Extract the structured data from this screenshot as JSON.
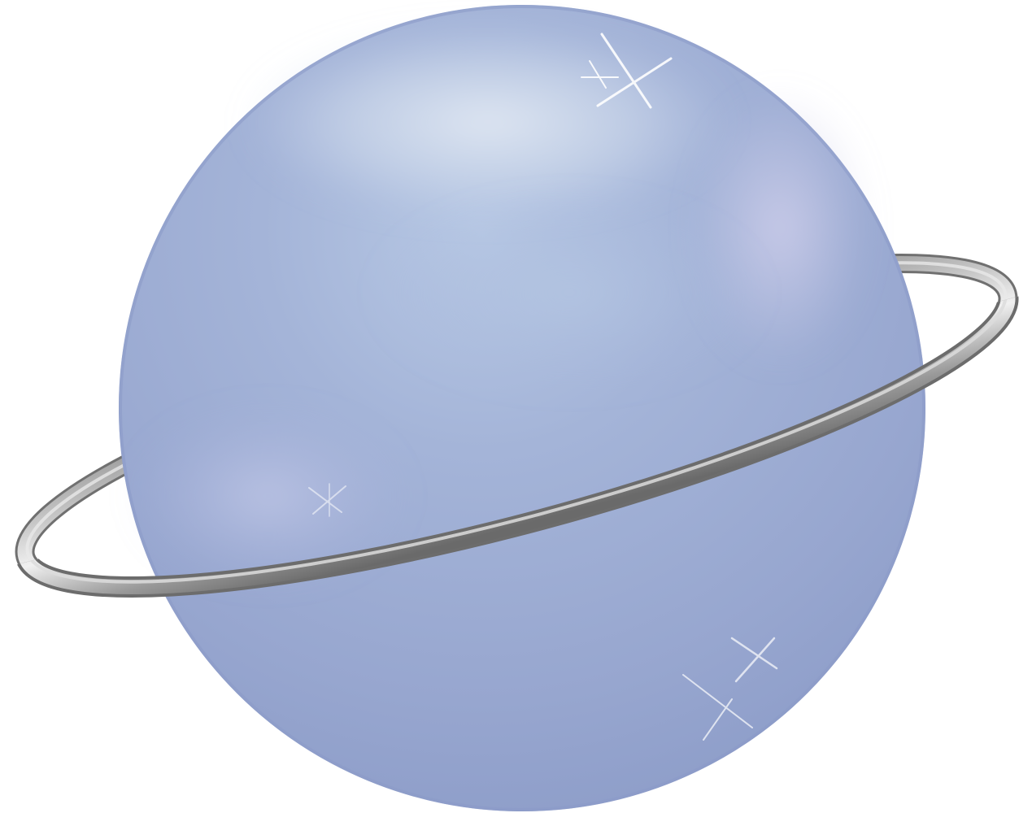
{
  "illustration": {
    "subject_icon": "ringed-planet-icon",
    "colors": {
      "planet_base": "#95a4cc",
      "planet_highlight": "#d6e0ee",
      "planet_lavender_glow": "#c6c9e6",
      "planet_shadow": "#8f9fca",
      "ring_dark": "#6f6f6f",
      "ring_mid": "#9a9a9a",
      "ring_light": "#e6e6e6",
      "sparkle": "#ffffff",
      "background": "#ffffff"
    },
    "sparkle_count": 3
  }
}
